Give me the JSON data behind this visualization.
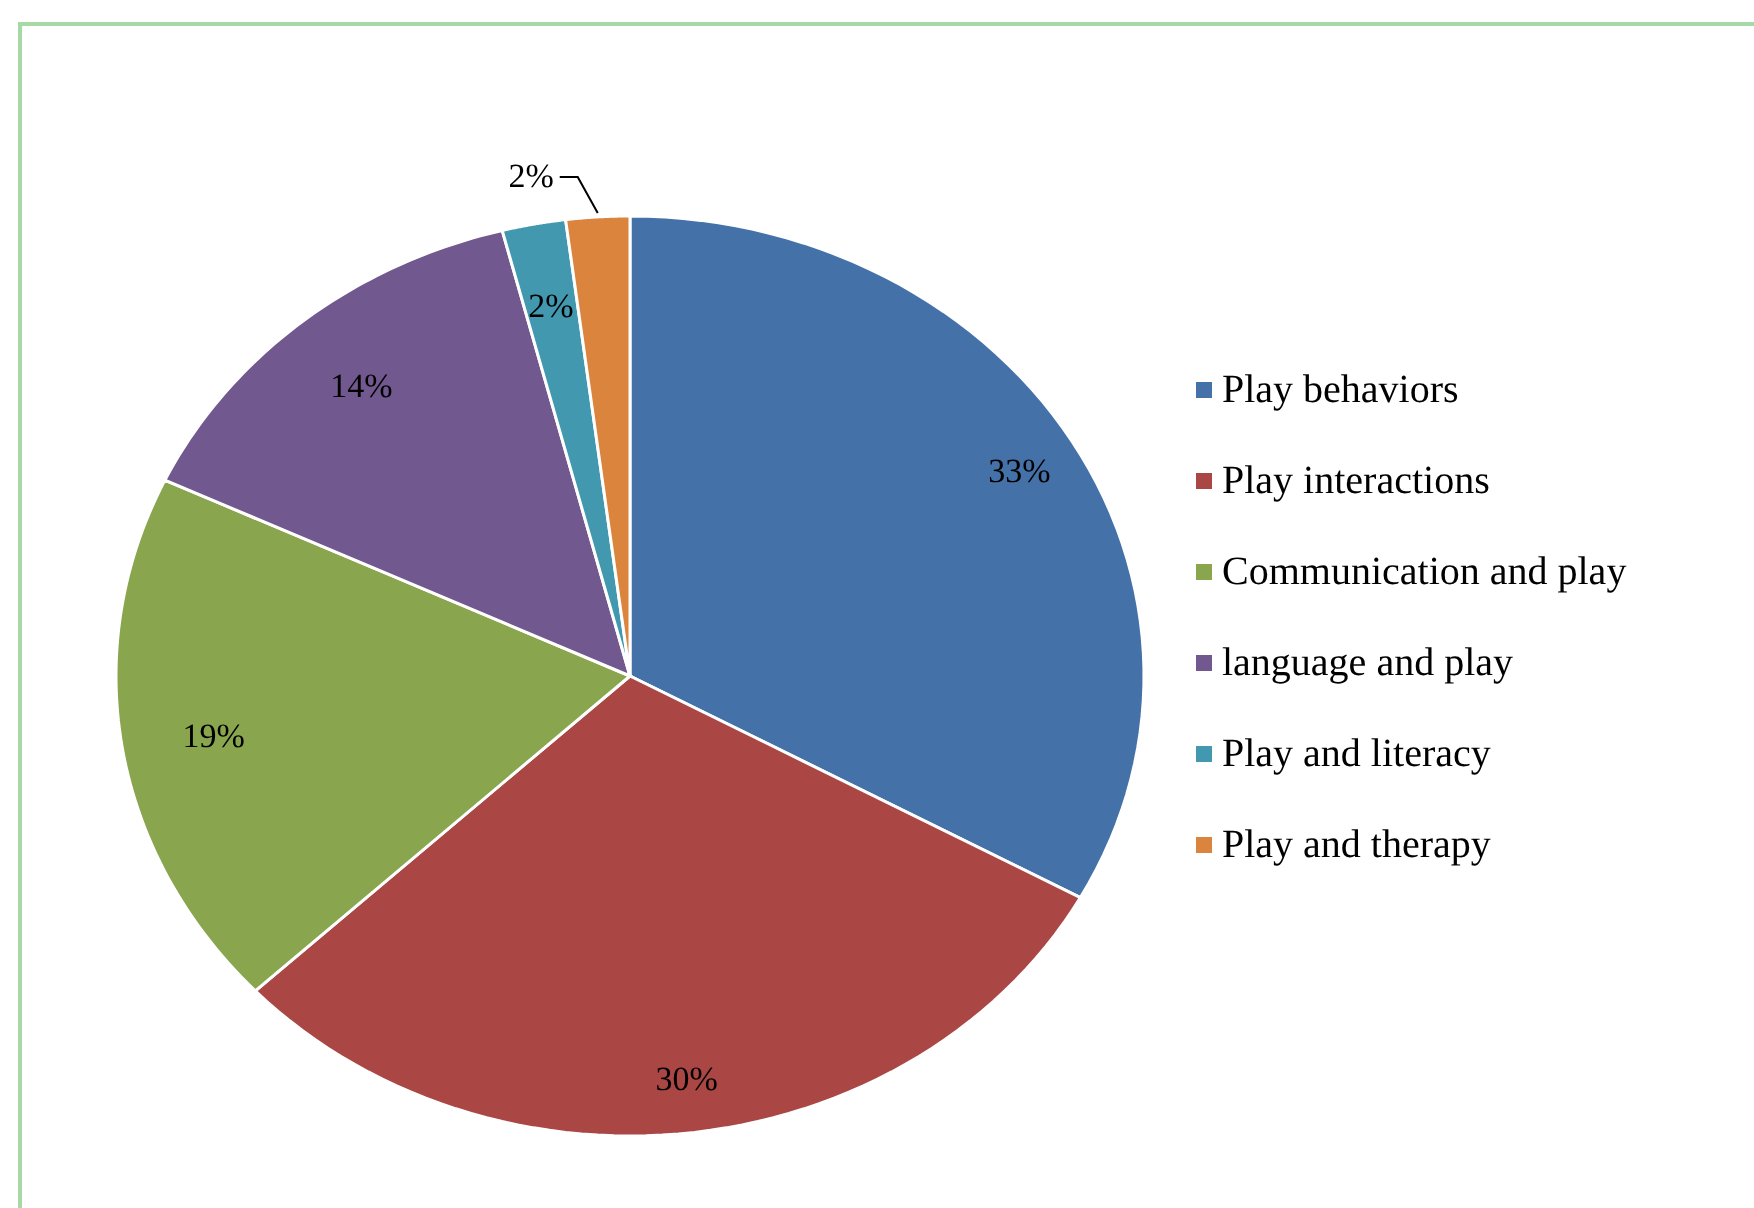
{
  "chart_data": {
    "type": "pie",
    "categories": [
      "Play behaviors",
      "Play interactions",
      "Communication and play",
      "language and play",
      "Play and literacy",
      "Play and therapy"
    ],
    "values": [
      33,
      30,
      19,
      14,
      2,
      2
    ],
    "colors": [
      "#4472a8",
      "#aa4644",
      "#89a54e",
      "#71588f",
      "#4198af",
      "#db843d"
    ],
    "value_labels": [
      "33%",
      "30%",
      "19%",
      "14%",
      "2%",
      "2%"
    ],
    "legend": "right"
  }
}
